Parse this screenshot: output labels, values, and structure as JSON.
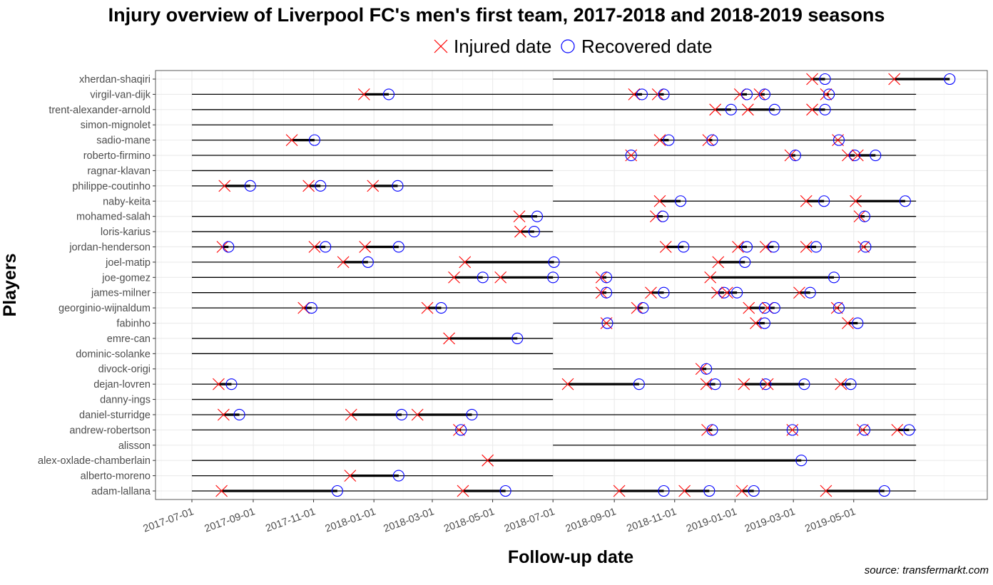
{
  "chart_data": {
    "type": "timeline",
    "title": "Injury overview of Liverpool FC's men's first team, 2017-2018 and 2018-2019 seasons",
    "xlabel": "Follow-up date",
    "ylabel": "Players",
    "source": "source: transfermarkt.com",
    "legend": {
      "position": "top",
      "injured_label": "Injured date",
      "recovered_label": "Recovered date"
    },
    "colors": {
      "injured": "#ff0000",
      "recovered": "#0000ff",
      "line": "#000000"
    },
    "grid": true,
    "x_ticks": [
      "2017-07-01",
      "2017-09-01",
      "2017-11-01",
      "2018-01-01",
      "2018-03-01",
      "2018-05-01",
      "2018-07-01",
      "2018-09-01",
      "2018-11-01",
      "2019-01-01",
      "2019-03-01",
      "2019-05-01"
    ],
    "players": [
      {
        "name": "xherdan-shaqiri",
        "tenure": [
          "2018-07-01",
          "2019-07-03"
        ],
        "injuries": [
          [
            "2019-03-20",
            "2019-04-02"
          ],
          [
            "2019-06-11",
            "2019-08-06"
          ]
        ]
      },
      {
        "name": "virgil-van-dijk",
        "tenure": [
          "2017-07-01",
          "2019-07-03"
        ],
        "injuries": [
          [
            "2017-12-22",
            "2018-01-16"
          ],
          [
            "2018-09-21",
            "2018-09-29"
          ],
          [
            "2018-10-15",
            "2018-10-21"
          ],
          [
            "2019-01-06",
            "2019-01-13"
          ],
          [
            "2019-01-26",
            "2019-01-31"
          ],
          [
            "2019-04-03",
            "2019-04-06"
          ]
        ]
      },
      {
        "name": "trent-alexander-arnold",
        "tenure": [
          "2017-07-01",
          "2019-07-03"
        ],
        "injuries": [
          [
            "2018-12-12",
            "2018-12-28"
          ],
          [
            "2019-01-14",
            "2019-02-10"
          ],
          [
            "2019-03-20",
            "2019-04-02"
          ]
        ]
      },
      {
        "name": "simon-mignolet",
        "tenure": [
          "2017-07-01",
          "2018-07-01"
        ],
        "injuries": []
      },
      {
        "name": "sadio-mane",
        "tenure": [
          "2017-07-01",
          "2019-07-03"
        ],
        "injuries": [
          [
            "2017-10-10",
            "2017-11-02"
          ],
          [
            "2018-10-17",
            "2018-10-26"
          ],
          [
            "2018-12-05",
            "2018-12-09"
          ],
          [
            "2019-04-15",
            "2019-04-16"
          ]
        ]
      },
      {
        "name": "roberto-firmino",
        "tenure": [
          "2017-07-01",
          "2019-07-03"
        ],
        "injuries": [
          [
            "2018-09-18",
            "2018-09-18"
          ],
          [
            "2019-02-26",
            "2019-03-03"
          ],
          [
            "2019-04-25",
            "2019-05-02"
          ],
          [
            "2019-05-05",
            "2019-05-23"
          ]
        ]
      },
      {
        "name": "ragnar-klavan",
        "tenure": [
          "2017-07-01",
          "2018-07-01"
        ],
        "injuries": []
      },
      {
        "name": "philippe-coutinho",
        "tenure": [
          "2017-07-01",
          "2018-07-01"
        ],
        "injuries": [
          [
            "2017-08-03",
            "2017-08-29"
          ],
          [
            "2017-10-27",
            "2017-11-08"
          ],
          [
            "2017-12-31",
            "2018-01-25"
          ]
        ]
      },
      {
        "name": "naby-keita",
        "tenure": [
          "2018-07-01",
          "2019-07-03"
        ],
        "injuries": [
          [
            "2018-10-17",
            "2018-11-07"
          ],
          [
            "2019-03-14",
            "2019-04-01"
          ],
          [
            "2019-05-03",
            "2019-06-22"
          ]
        ]
      },
      {
        "name": "mohamed-salah",
        "tenure": [
          "2017-07-01",
          "2019-07-03"
        ],
        "injuries": [
          [
            "2018-05-28",
            "2018-06-15"
          ],
          [
            "2018-10-13",
            "2018-10-20"
          ],
          [
            "2019-05-07",
            "2019-05-12"
          ]
        ]
      },
      {
        "name": "loris-karius",
        "tenure": [
          "2017-07-01",
          "2018-07-01"
        ],
        "injuries": [
          [
            "2018-05-29",
            "2018-06-12"
          ]
        ]
      },
      {
        "name": "jordan-henderson",
        "tenure": [
          "2017-07-01",
          "2019-07-03"
        ],
        "injuries": [
          [
            "2017-08-01",
            "2017-08-07"
          ],
          [
            "2017-11-02",
            "2017-11-13"
          ],
          [
            "2017-12-23",
            "2018-01-26"
          ],
          [
            "2018-10-23",
            "2018-11-10"
          ],
          [
            "2019-01-04",
            "2019-01-13"
          ],
          [
            "2019-02-01",
            "2019-02-09"
          ],
          [
            "2019-03-14",
            "2019-03-24"
          ],
          [
            "2019-05-11",
            "2019-05-13"
          ]
        ]
      },
      {
        "name": "joel-matip",
        "tenure": [
          "2017-07-01",
          "2019-07-03"
        ],
        "injuries": [
          [
            "2017-12-01",
            "2017-12-26"
          ],
          [
            "2018-04-03",
            "2018-07-02"
          ],
          [
            "2018-12-15",
            "2019-01-11"
          ]
        ]
      },
      {
        "name": "joe-gomez",
        "tenure": [
          "2017-07-01",
          "2019-07-03"
        ],
        "injuries": [
          [
            "2018-03-23",
            "2018-04-21"
          ],
          [
            "2018-05-09",
            "2018-07-01"
          ],
          [
            "2018-08-19",
            "2018-08-24"
          ],
          [
            "2018-12-07",
            "2019-04-11"
          ]
        ]
      },
      {
        "name": "james-milner",
        "tenure": [
          "2017-07-01",
          "2019-07-03"
        ],
        "injuries": [
          [
            "2018-08-19",
            "2018-08-24"
          ],
          [
            "2018-10-08",
            "2018-10-21"
          ],
          [
            "2018-12-14",
            "2018-12-21"
          ],
          [
            "2018-12-24",
            "2019-01-03"
          ],
          [
            "2019-03-07",
            "2019-03-18"
          ]
        ]
      },
      {
        "name": "georginio-wijnaldum",
        "tenure": [
          "2017-07-01",
          "2019-07-03"
        ],
        "injuries": [
          [
            "2017-10-22",
            "2017-10-30"
          ],
          [
            "2018-02-24",
            "2018-03-10"
          ],
          [
            "2018-09-24",
            "2018-09-30"
          ],
          [
            "2019-01-15",
            "2019-01-31"
          ],
          [
            "2019-02-03",
            "2019-02-10"
          ],
          [
            "2019-04-14",
            "2019-04-16"
          ]
        ]
      },
      {
        "name": "fabinho",
        "tenure": [
          "2018-07-01",
          "2019-07-03"
        ],
        "injuries": [
          [
            "2018-08-24",
            "2018-08-25"
          ],
          [
            "2019-01-22",
            "2019-01-31"
          ],
          [
            "2019-04-25",
            "2019-05-05"
          ]
        ]
      },
      {
        "name": "emre-can",
        "tenure": [
          "2017-07-01",
          "2018-07-01"
        ],
        "injuries": [
          [
            "2018-03-18",
            "2018-05-26"
          ]
        ]
      },
      {
        "name": "dominic-solanke",
        "tenure": [
          "2017-07-01",
          "2018-07-01"
        ],
        "injuries": []
      },
      {
        "name": "divock-origi",
        "tenure": [
          "2018-07-01",
          "2019-07-03"
        ],
        "injuries": [
          [
            "2018-11-28",
            "2018-12-03"
          ]
        ]
      },
      {
        "name": "dejan-lovren",
        "tenure": [
          "2017-07-01",
          "2019-07-03"
        ],
        "injuries": [
          [
            "2017-07-28",
            "2017-08-10"
          ],
          [
            "2018-07-16",
            "2018-09-26"
          ],
          [
            "2018-12-03",
            "2018-12-12"
          ],
          [
            "2019-01-10",
            "2019-02-01"
          ],
          [
            "2019-02-03",
            "2019-03-12"
          ],
          [
            "2019-04-18",
            "2019-04-28"
          ]
        ]
      },
      {
        "name": "danny-ings",
        "tenure": [
          "2017-07-01",
          "2018-07-01"
        ],
        "injuries": []
      },
      {
        "name": "daniel-sturridge",
        "tenure": [
          "2017-07-01",
          "2019-07-03"
        ],
        "injuries": [
          [
            "2017-08-02",
            "2017-08-18"
          ],
          [
            "2017-12-09",
            "2018-01-29"
          ],
          [
            "2018-02-14",
            "2018-04-10"
          ]
        ]
      },
      {
        "name": "andrew-robertson",
        "tenure": [
          "2017-07-01",
          "2019-07-03"
        ],
        "injuries": [
          [
            "2018-03-28",
            "2018-03-30"
          ],
          [
            "2018-12-04",
            "2018-12-09"
          ],
          [
            "2019-02-28",
            "2019-02-28"
          ],
          [
            "2019-05-10",
            "2019-05-12"
          ],
          [
            "2019-06-14",
            "2019-06-26"
          ]
        ]
      },
      {
        "name": "alisson",
        "tenure": [
          "2018-07-01",
          "2019-07-03"
        ],
        "injuries": []
      },
      {
        "name": "alex-oxlade-chamberlain",
        "tenure": [
          "2017-07-01",
          "2019-07-03"
        ],
        "injuries": [
          [
            "2018-04-26",
            "2019-03-09"
          ]
        ]
      },
      {
        "name": "alberto-moreno",
        "tenure": [
          "2017-07-01",
          "2018-07-01"
        ],
        "injuries": [
          [
            "2017-12-08",
            "2018-01-26"
          ]
        ]
      },
      {
        "name": "adam-lallana",
        "tenure": [
          "2017-07-01",
          "2019-07-03"
        ],
        "injuries": [
          [
            "2017-07-31",
            "2017-11-25"
          ],
          [
            "2018-04-01",
            "2018-05-14"
          ],
          [
            "2018-09-06",
            "2018-10-21"
          ],
          [
            "2018-11-11",
            "2018-12-06"
          ],
          [
            "2019-01-08",
            "2019-01-20"
          ],
          [
            "2019-04-03",
            "2019-06-01"
          ]
        ]
      }
    ]
  }
}
